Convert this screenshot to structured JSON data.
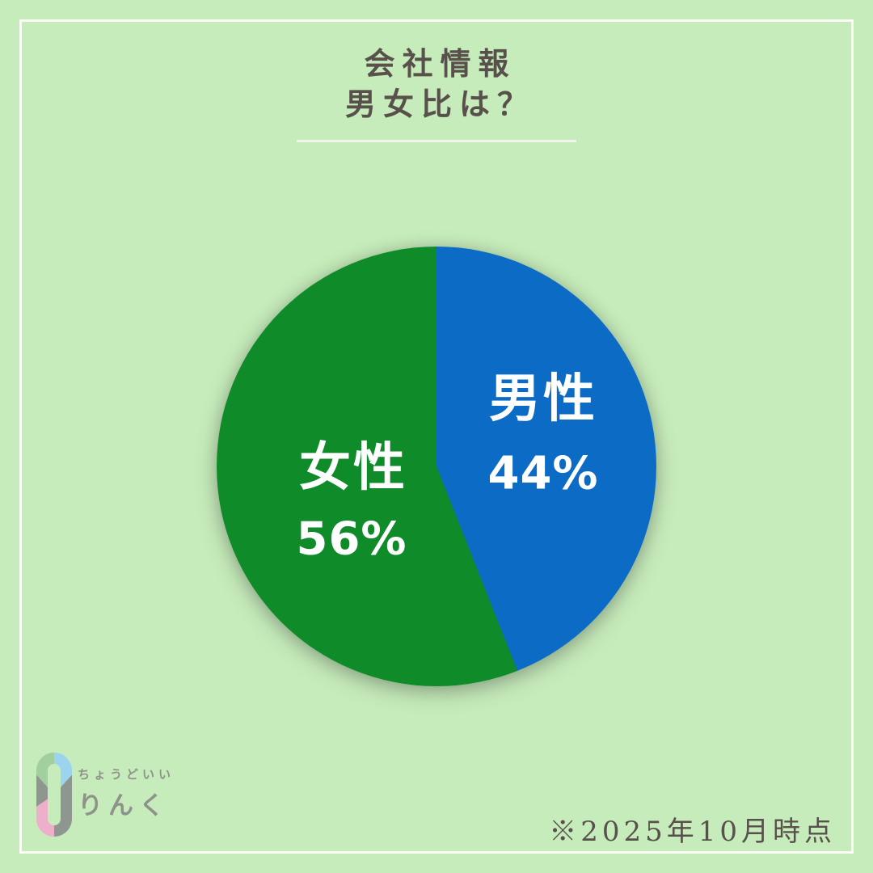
{
  "page": {
    "background_color": "#c7ecbb",
    "frame_border_color": "#fdfdf8"
  },
  "header": {
    "title_line1": "会社情報",
    "title_line2": "男女比は？",
    "text_color": "#58504b"
  },
  "chart_data": {
    "type": "pie",
    "title": "男女比",
    "start_angle_deg": 0,
    "direction": "clockwise",
    "label_color": "#ffffff",
    "segments": [
      {
        "label": "男性",
        "value": 44,
        "value_label": "44%",
        "color": "#0c6bc4"
      },
      {
        "label": "女性",
        "value": 56,
        "value_label": "56%",
        "color": "#0f8b29"
      }
    ]
  },
  "footer": {
    "note": "※2025年10月時点",
    "logo": {
      "tagline": "ちょうどいい",
      "name": "りんく",
      "text_color": "#8d9389",
      "ring_segments": [
        {
          "color": "#9bd4ec",
          "from": 0,
          "to": 42
        },
        {
          "color": "#8f968f",
          "from": 42,
          "to": 180
        },
        {
          "color": "#edafca",
          "from": 180,
          "to": 236
        },
        {
          "color": "#8f968f",
          "from": 236,
          "to": 318
        },
        {
          "color": "#a2cf9e",
          "from": 318,
          "to": 360
        }
      ]
    }
  }
}
